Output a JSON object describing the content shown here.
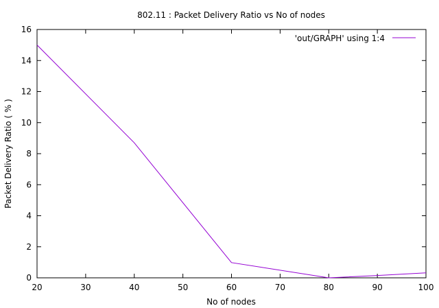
{
  "chart_data": {
    "type": "line",
    "title": "802.11 : Packet Delivery Ratio vs No of nodes",
    "xlabel": "No of nodes",
    "ylabel": "Packet Delivery Ratio ( % )",
    "xlim": [
      20,
      100
    ],
    "ylim": [
      0,
      16
    ],
    "xticks": [
      20,
      30,
      40,
      50,
      60,
      70,
      80,
      90,
      100
    ],
    "yticks": [
      0,
      2,
      4,
      6,
      8,
      10,
      12,
      14,
      16
    ],
    "grid": false,
    "legend_position": "top-right",
    "series": [
      {
        "name": "'out/GRAPH' using 1:4",
        "color": "#9400d3",
        "x": [
          20,
          40,
          60,
          80,
          90,
          100
        ],
        "y": [
          15.0,
          8.7,
          0.98,
          0.0,
          0.15,
          0.32
        ]
      }
    ]
  }
}
